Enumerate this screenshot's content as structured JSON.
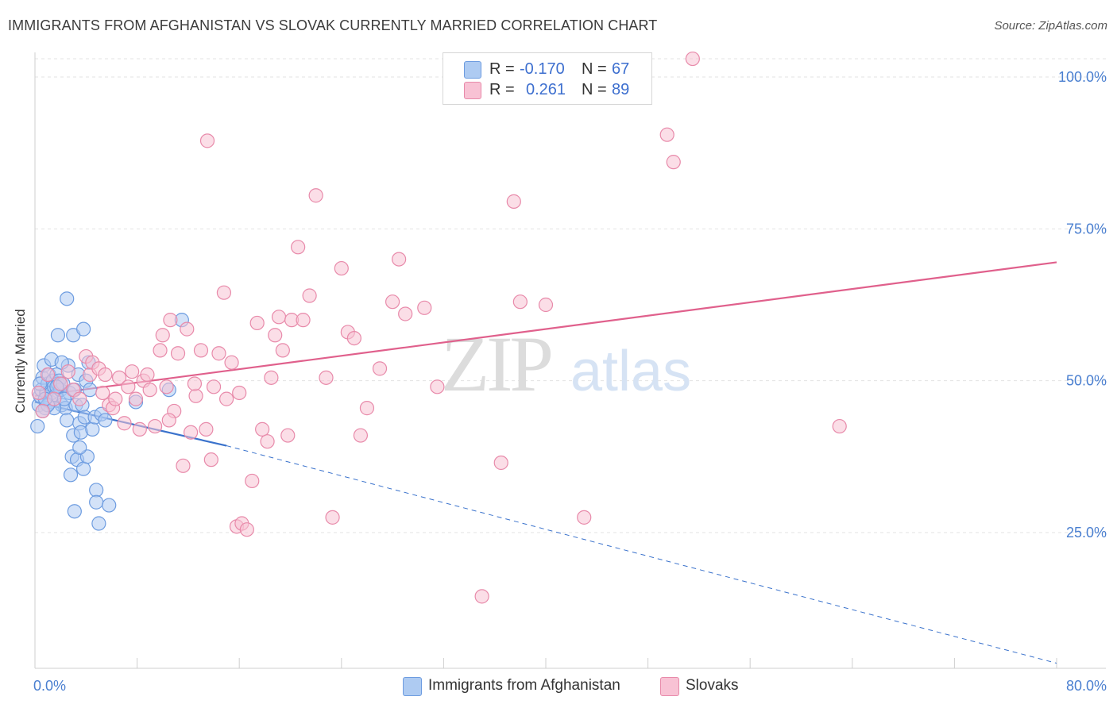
{
  "header": {
    "title": "IMMIGRANTS FROM AFGHANISTAN VS SLOVAK CURRENTLY MARRIED CORRELATION CHART",
    "source": "Source: ZipAtlas.com"
  },
  "watermark": {
    "zip": "ZIP",
    "atlas": "atlas"
  },
  "legend": {
    "rows": [
      {
        "r_label": "R =",
        "r_value": "-0.170",
        "n_label": "N =",
        "n_value": "67",
        "color": "#aecbf2",
        "stroke": "#6d9ce0"
      },
      {
        "r_label": "R =",
        "r_value": "0.261",
        "n_label": "N =",
        "n_value": "89",
        "color": "#f8c2d4",
        "stroke": "#e88aaa"
      }
    ]
  },
  "bottom_legend": [
    {
      "label": "Immigrants from Afghanistan",
      "color": "#aecbf2",
      "stroke": "#6d9ce0"
    },
    {
      "label": "Slovaks",
      "color": "#f8c2d4",
      "stroke": "#e88aaa"
    }
  ],
  "chart_data": {
    "type": "scatter",
    "title": "IMMIGRANTS FROM AFGHANISTAN VS SLOVAK CURRENTLY MARRIED CORRELATION CHART",
    "xlabel": "",
    "ylabel": "Currently Married",
    "xlim": [
      0,
      80
    ],
    "ylim": [
      0,
      105
    ],
    "x_tick_labels": [
      "0.0%",
      "80.0%"
    ],
    "y_tick_labels": [
      "100.0%",
      "75.0%",
      "50.0%",
      "25.0%"
    ],
    "y_ticks": [
      100,
      75,
      50,
      25
    ],
    "grid": "horizontal dashed",
    "legend_position": "top-center",
    "colors": {
      "blue": "#6d9ce0",
      "blue_fill": "#aecbf2",
      "blue_line": "#3a72cc",
      "pink": "#e88aaa",
      "pink_fill": "#f8c2d4",
      "pink_line": "#e0608c",
      "tick_text": "#4a7fd0"
    },
    "series": [
      {
        "name": "Immigrants from Afghanistan",
        "trend": {
          "x0": 0,
          "y0": 46.5,
          "x1": 15,
          "y1": 39.3,
          "dash_to_x": 80,
          "dash_to_y": 3.5
        },
        "points": [
          [
            0.2,
            42.5
          ],
          [
            0.3,
            46.0
          ],
          [
            0.4,
            47.5
          ],
          [
            0.5,
            48.5
          ],
          [
            0.6,
            50.5
          ],
          [
            0.7,
            52.5
          ],
          [
            0.8,
            45.5
          ],
          [
            0.9,
            48.0
          ],
          [
            1.0,
            49.5
          ],
          [
            1.1,
            51.0
          ],
          [
            1.2,
            46.5
          ],
          [
            1.3,
            48.0
          ],
          [
            1.4,
            50.0
          ],
          [
            1.5,
            49.0
          ],
          [
            1.6,
            47.5
          ],
          [
            1.7,
            51.0
          ],
          [
            1.8,
            49.5
          ],
          [
            1.9,
            50.0
          ],
          [
            2.0,
            48.5
          ],
          [
            2.1,
            46.0
          ],
          [
            2.2,
            49.5
          ],
          [
            1.8,
            57.5
          ],
          [
            2.4,
            45.5
          ],
          [
            2.5,
            43.5
          ],
          [
            2.6,
            52.5
          ],
          [
            2.7,
            48.0
          ],
          [
            2.8,
            34.5
          ],
          [
            2.5,
            63.5
          ],
          [
            3.0,
            41.0
          ],
          [
            2.9,
            37.5
          ],
          [
            3.2,
            46.0
          ],
          [
            3.3,
            37.0
          ],
          [
            3.0,
            57.5
          ],
          [
            3.4,
            51.0
          ],
          [
            3.5,
            43.0
          ],
          [
            3.6,
            41.5
          ],
          [
            3.7,
            46.0
          ],
          [
            3.8,
            35.5
          ],
          [
            3.9,
            44.0
          ],
          [
            4.0,
            50.0
          ],
          [
            4.1,
            37.5
          ],
          [
            3.8,
            58.5
          ],
          [
            4.3,
            48.5
          ],
          [
            4.5,
            42.0
          ],
          [
            4.7,
            44.0
          ],
          [
            4.8,
            32.0
          ],
          [
            4.8,
            30.0
          ],
          [
            5.0,
            26.5
          ],
          [
            5.2,
            44.5
          ],
          [
            5.5,
            43.5
          ],
          [
            5.8,
            29.5
          ],
          [
            3.1,
            28.5
          ],
          [
            3.5,
            39.0
          ],
          [
            1.5,
            45.5
          ],
          [
            1.0,
            46.0
          ],
          [
            0.6,
            45.0
          ],
          [
            0.8,
            47.0
          ],
          [
            1.3,
            53.5
          ],
          [
            2.3,
            47.0
          ],
          [
            3.1,
            48.5
          ],
          [
            4.2,
            53.0
          ],
          [
            2.1,
            53.0
          ],
          [
            1.7,
            49.0
          ],
          [
            0.4,
            49.5
          ],
          [
            7.9,
            46.5
          ],
          [
            10.5,
            48.5
          ],
          [
            11.5,
            60.0
          ]
        ]
      },
      {
        "name": "Slovaks",
        "trend": {
          "x0": 0,
          "y0": 47.5,
          "x1": 80,
          "y1": 69.5
        },
        "points": [
          [
            0.3,
            48.0
          ],
          [
            0.6,
            45.0
          ],
          [
            1.0,
            51.0
          ],
          [
            1.5,
            47.0
          ],
          [
            2.0,
            49.5
          ],
          [
            2.6,
            51.5
          ],
          [
            3.0,
            48.5
          ],
          [
            3.5,
            47.0
          ],
          [
            4.0,
            54.0
          ],
          [
            4.3,
            51.0
          ],
          [
            4.5,
            53.0
          ],
          [
            5.0,
            52.0
          ],
          [
            5.3,
            48.0
          ],
          [
            5.5,
            51.0
          ],
          [
            5.8,
            46.0
          ],
          [
            6.1,
            45.5
          ],
          [
            6.3,
            47.0
          ],
          [
            6.6,
            50.5
          ],
          [
            7.0,
            43.0
          ],
          [
            7.3,
            49.0
          ],
          [
            7.6,
            51.5
          ],
          [
            7.9,
            47.0
          ],
          [
            8.2,
            42.0
          ],
          [
            8.5,
            50.0
          ],
          [
            8.8,
            51.0
          ],
          [
            9.0,
            48.5
          ],
          [
            9.4,
            42.5
          ],
          [
            9.8,
            55.0
          ],
          [
            10.0,
            57.5
          ],
          [
            10.3,
            49.0
          ],
          [
            10.6,
            60.0
          ],
          [
            10.9,
            45.0
          ],
          [
            11.2,
            54.5
          ],
          [
            11.6,
            36.0
          ],
          [
            11.9,
            58.5
          ],
          [
            12.2,
            41.5
          ],
          [
            12.6,
            47.5
          ],
          [
            13.0,
            55.0
          ],
          [
            13.4,
            42.0
          ],
          [
            13.8,
            37.0
          ],
          [
            14.0,
            49.0
          ],
          [
            14.4,
            54.5
          ],
          [
            14.8,
            64.5
          ],
          [
            15.0,
            47.0
          ],
          [
            15.4,
            53.0
          ],
          [
            15.8,
            26.0
          ],
          [
            16.2,
            26.5
          ],
          [
            16.6,
            25.5
          ],
          [
            17.0,
            33.5
          ],
          [
            17.4,
            59.5
          ],
          [
            17.8,
            42.0
          ],
          [
            18.2,
            40.0
          ],
          [
            18.5,
            50.5
          ],
          [
            18.8,
            57.5
          ],
          [
            19.1,
            60.5
          ],
          [
            19.4,
            55.0
          ],
          [
            19.8,
            41.0
          ],
          [
            20.1,
            60.0
          ],
          [
            20.6,
            72.0
          ],
          [
            21.0,
            60.0
          ],
          [
            21.5,
            64.0
          ],
          [
            22.0,
            80.5
          ],
          [
            22.8,
            50.5
          ],
          [
            23.3,
            27.5
          ],
          [
            24.0,
            68.5
          ],
          [
            24.5,
            58.0
          ],
          [
            25.0,
            57.0
          ],
          [
            25.5,
            41.0
          ],
          [
            26.0,
            45.5
          ],
          [
            27.0,
            52.0
          ],
          [
            28.0,
            63.0
          ],
          [
            28.5,
            70.0
          ],
          [
            29.0,
            61.0
          ],
          [
            30.5,
            62.0
          ],
          [
            31.5,
            49.0
          ],
          [
            35.0,
            14.5
          ],
          [
            36.5,
            36.5
          ],
          [
            37.5,
            79.5
          ],
          [
            38.0,
            63.0
          ],
          [
            40.0,
            62.5
          ],
          [
            43.0,
            27.5
          ],
          [
            49.5,
            90.5
          ],
          [
            50.0,
            86.0
          ],
          [
            51.5,
            103.0
          ],
          [
            63.0,
            42.5
          ],
          [
            13.5,
            89.5
          ],
          [
            10.5,
            43.5
          ],
          [
            12.5,
            49.5
          ],
          [
            16.0,
            48.0
          ]
        ]
      }
    ]
  }
}
